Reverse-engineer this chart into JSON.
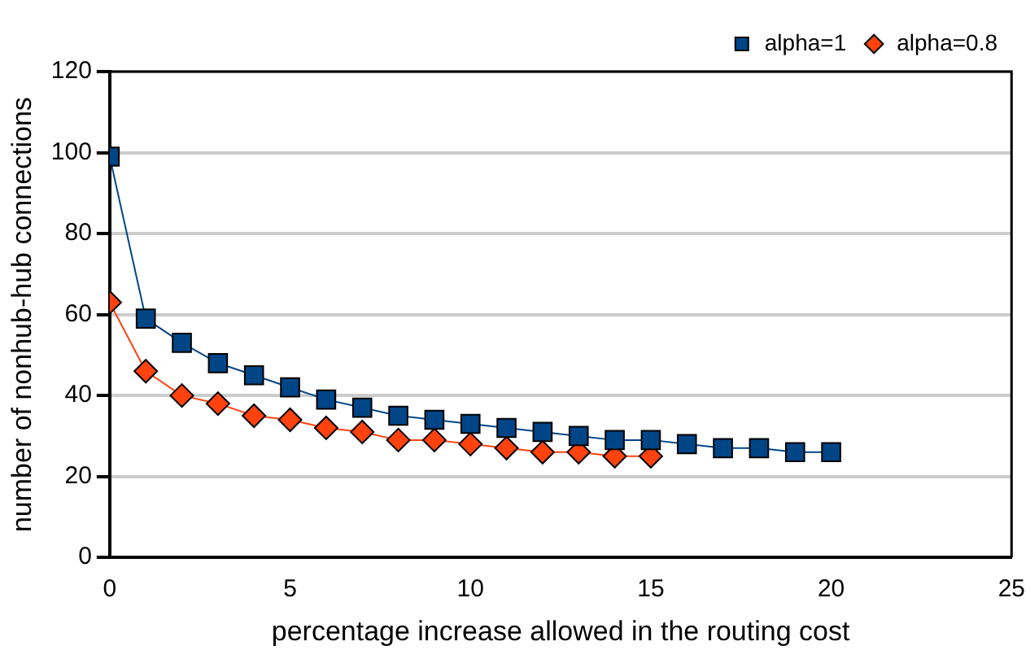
{
  "chart_data": {
    "type": "line",
    "xlabel": "percentage increase allowed in the routing cost",
    "ylabel": "number of nonhub-hub connections",
    "xlim": [
      0,
      25
    ],
    "xticks": [
      0,
      5,
      10,
      15,
      20,
      25
    ],
    "ylim": [
      0,
      120
    ],
    "yticks": [
      0,
      20,
      40,
      60,
      80,
      100,
      120
    ],
    "grid": "y",
    "legend": "top right",
    "series": [
      {
        "name": "alpha=1",
        "color": "#004586",
        "marker": "square",
        "x": [
          0,
          1,
          2,
          3,
          4,
          5,
          6,
          7,
          8,
          9,
          10,
          11,
          12,
          13,
          14,
          15,
          16,
          17,
          18,
          19,
          20
        ],
        "values": [
          99,
          59,
          53,
          48,
          45,
          42,
          39,
          37,
          35,
          34,
          33,
          32,
          31,
          30,
          29,
          29,
          28,
          27,
          27,
          26,
          26
        ]
      },
      {
        "name": "alpha=0.8",
        "color": "#ff420e",
        "marker": "diamond",
        "x": [
          0,
          1,
          2,
          3,
          4,
          5,
          6,
          7,
          8,
          9,
          10,
          11,
          12,
          13,
          14,
          15
        ],
        "values": [
          63,
          46,
          40,
          38,
          35,
          34,
          32,
          31,
          29,
          29,
          28,
          27,
          26,
          26,
          25,
          25
        ]
      }
    ]
  }
}
